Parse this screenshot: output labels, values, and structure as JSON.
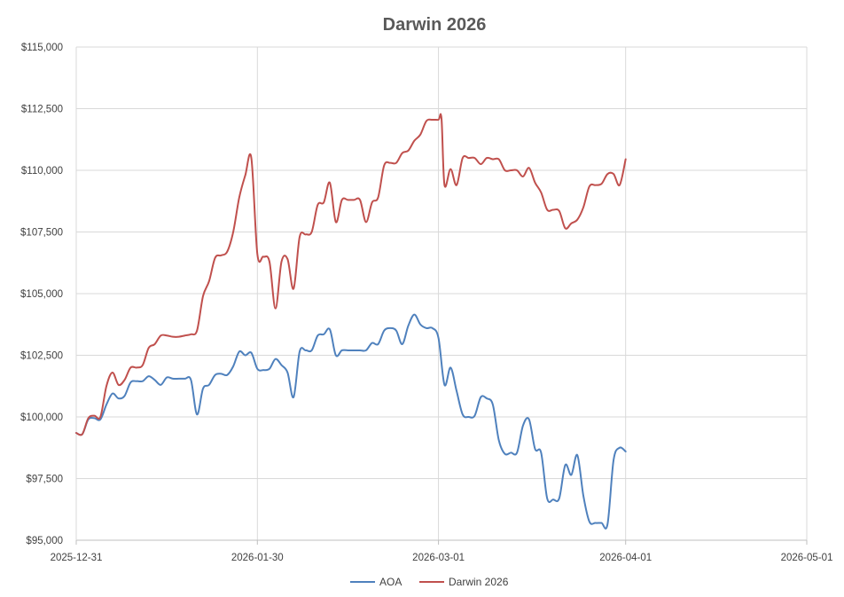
{
  "chart_data": {
    "type": "line",
    "title": "Darwin 2026",
    "xlabel": "",
    "ylabel": "",
    "x_ticks": [
      "2025-12-31",
      "2026-01-30",
      "2026-03-01",
      "2026-04-01",
      "2026-05-01"
    ],
    "y_ticks": [
      "$95,000",
      "$97,500",
      "$100,000",
      "$102,500",
      "$105,000",
      "$107,500",
      "$110,000",
      "$112,500",
      "$115,000"
    ],
    "xlim": [
      "2025-12-31",
      "2026-05-01"
    ],
    "ylim": [
      95000,
      115000
    ],
    "grid": true,
    "legend_position": "bottom",
    "series": [
      {
        "name": "AOA",
        "color": "#4f81bd",
        "points": [
          [
            "2025-12-31",
            99350
          ],
          [
            "2026-01-01",
            99300
          ],
          [
            "2026-01-02",
            99900
          ],
          [
            "2026-01-03",
            99950
          ],
          [
            "2026-01-04",
            99900
          ],
          [
            "2026-01-05",
            100500
          ],
          [
            "2026-01-06",
            100950
          ],
          [
            "2026-01-07",
            100750
          ],
          [
            "2026-01-08",
            100850
          ],
          [
            "2026-01-09",
            101400
          ],
          [
            "2026-01-10",
            101450
          ],
          [
            "2026-01-11",
            101450
          ],
          [
            "2026-01-12",
            101650
          ],
          [
            "2026-01-13",
            101500
          ],
          [
            "2026-01-14",
            101300
          ],
          [
            "2026-01-15",
            101600
          ],
          [
            "2026-01-16",
            101550
          ],
          [
            "2026-01-17",
            101550
          ],
          [
            "2026-01-18",
            101550
          ],
          [
            "2026-01-19",
            101500
          ],
          [
            "2026-01-20",
            100100
          ],
          [
            "2026-01-21",
            101150
          ],
          [
            "2026-01-22",
            101300
          ],
          [
            "2026-01-23",
            101700
          ],
          [
            "2026-01-24",
            101750
          ],
          [
            "2026-01-25",
            101700
          ],
          [
            "2026-01-26",
            102050
          ],
          [
            "2026-01-27",
            102650
          ],
          [
            "2026-01-28",
            102500
          ],
          [
            "2026-01-29",
            102600
          ],
          [
            "2026-01-30",
            101950
          ],
          [
            "2026-01-31",
            101900
          ],
          [
            "2026-02-01",
            101950
          ],
          [
            "2026-02-02",
            102350
          ],
          [
            "2026-02-03",
            102100
          ],
          [
            "2026-02-04",
            101800
          ],
          [
            "2026-02-05",
            100800
          ],
          [
            "2026-02-06",
            102650
          ],
          [
            "2026-02-07",
            102700
          ],
          [
            "2026-02-08",
            102700
          ],
          [
            "2026-02-09",
            103300
          ],
          [
            "2026-02-10",
            103350
          ],
          [
            "2026-02-11",
            103550
          ],
          [
            "2026-02-12",
            102500
          ],
          [
            "2026-02-13",
            102700
          ],
          [
            "2026-02-14",
            102700
          ],
          [
            "2026-02-15",
            102700
          ],
          [
            "2026-02-16",
            102700
          ],
          [
            "2026-02-17",
            102700
          ],
          [
            "2026-02-18",
            103000
          ],
          [
            "2026-02-19",
            102950
          ],
          [
            "2026-02-20",
            103500
          ],
          [
            "2026-02-21",
            103600
          ],
          [
            "2026-02-22",
            103500
          ],
          [
            "2026-02-23",
            102950
          ],
          [
            "2026-02-24",
            103700
          ],
          [
            "2026-02-25",
            104150
          ],
          [
            "2026-02-26",
            103750
          ],
          [
            "2026-02-27",
            103600
          ],
          [
            "2026-02-28",
            103600
          ],
          [
            "2026-03-01",
            103200
          ],
          [
            "2026-03-02",
            101300
          ],
          [
            "2026-03-03",
            102000
          ],
          [
            "2026-03-04",
            101050
          ],
          [
            "2026-03-05",
            100100
          ],
          [
            "2026-03-06",
            100000
          ],
          [
            "2026-03-07",
            100050
          ],
          [
            "2026-03-08",
            100800
          ],
          [
            "2026-03-09",
            100750
          ],
          [
            "2026-03-10",
            100500
          ],
          [
            "2026-03-11",
            99050
          ],
          [
            "2026-03-12",
            98500
          ],
          [
            "2026-03-13",
            98550
          ],
          [
            "2026-03-14",
            98550
          ],
          [
            "2026-03-15",
            99650
          ],
          [
            "2026-03-16",
            99900
          ],
          [
            "2026-03-17",
            98700
          ],
          [
            "2026-03-18",
            98550
          ],
          [
            "2026-03-19",
            96700
          ],
          [
            "2026-03-20",
            96650
          ],
          [
            "2026-03-21",
            96700
          ],
          [
            "2026-03-22",
            98050
          ],
          [
            "2026-03-23",
            97650
          ],
          [
            "2026-03-24",
            98450
          ],
          [
            "2026-03-25",
            96800
          ],
          [
            "2026-03-26",
            95750
          ],
          [
            "2026-03-27",
            95700
          ],
          [
            "2026-03-28",
            95700
          ],
          [
            "2026-03-29",
            95650
          ],
          [
            "2026-03-30",
            98250
          ],
          [
            "2026-03-31",
            98750
          ],
          [
            "2026-04-01",
            98600
          ]
        ]
      },
      {
        "name": "Darwin 2026",
        "color": "#c0504d",
        "points": [
          [
            "2025-12-31",
            99350
          ],
          [
            "2026-01-01",
            99300
          ],
          [
            "2026-01-02",
            99950
          ],
          [
            "2026-01-03",
            100050
          ],
          [
            "2026-01-04",
            100000
          ],
          [
            "2026-01-05",
            101250
          ],
          [
            "2026-01-06",
            101800
          ],
          [
            "2026-01-07",
            101300
          ],
          [
            "2026-01-08",
            101500
          ],
          [
            "2026-01-09",
            102000
          ],
          [
            "2026-01-10",
            102000
          ],
          [
            "2026-01-11",
            102100
          ],
          [
            "2026-01-12",
            102800
          ],
          [
            "2026-01-13",
            102950
          ],
          [
            "2026-01-14",
            103300
          ],
          [
            "2026-01-15",
            103300
          ],
          [
            "2026-01-16",
            103250
          ],
          [
            "2026-01-17",
            103250
          ],
          [
            "2026-01-18",
            103300
          ],
          [
            "2026-01-19",
            103350
          ],
          [
            "2026-01-20",
            103500
          ],
          [
            "2026-01-21",
            104900
          ],
          [
            "2026-01-22",
            105500
          ],
          [
            "2026-01-23",
            106450
          ],
          [
            "2026-01-24",
            106550
          ],
          [
            "2026-01-25",
            106700
          ],
          [
            "2026-01-26",
            107500
          ],
          [
            "2026-01-27",
            108900
          ],
          [
            "2026-01-28",
            109800
          ],
          [
            "2026-01-29",
            110500
          ],
          [
            "2026-01-30",
            106600
          ],
          [
            "2026-01-31",
            106500
          ],
          [
            "2026-02-01",
            106300
          ],
          [
            "2026-02-02",
            104400
          ],
          [
            "2026-02-03",
            106300
          ],
          [
            "2026-02-04",
            106400
          ],
          [
            "2026-02-05",
            105200
          ],
          [
            "2026-02-06",
            107300
          ],
          [
            "2026-02-07",
            107400
          ],
          [
            "2026-02-08",
            107500
          ],
          [
            "2026-02-09",
            108600
          ],
          [
            "2026-02-10",
            108700
          ],
          [
            "2026-02-11",
            109500
          ],
          [
            "2026-02-12",
            107900
          ],
          [
            "2026-02-13",
            108800
          ],
          [
            "2026-02-14",
            108800
          ],
          [
            "2026-02-15",
            108800
          ],
          [
            "2026-02-16",
            108800
          ],
          [
            "2026-02-17",
            107900
          ],
          [
            "2026-02-18",
            108700
          ],
          [
            "2026-02-19",
            108900
          ],
          [
            "2026-02-20",
            110200
          ],
          [
            "2026-02-21",
            110300
          ],
          [
            "2026-02-22",
            110300
          ],
          [
            "2026-02-23",
            110700
          ],
          [
            "2026-02-24",
            110800
          ],
          [
            "2026-02-25",
            111200
          ],
          [
            "2026-02-26",
            111450
          ],
          [
            "2026-02-27",
            112000
          ],
          [
            "2026-02-28",
            112050
          ],
          [
            "2026-02-29",
            112050
          ],
          [
            "2026-03-01",
            112100
          ],
          [
            "2026-03-02",
            109400
          ],
          [
            "2026-03-03",
            110050
          ],
          [
            "2026-03-04",
            109400
          ],
          [
            "2026-03-05",
            110500
          ],
          [
            "2026-03-06",
            110500
          ],
          [
            "2026-03-07",
            110500
          ],
          [
            "2026-03-08",
            110250
          ],
          [
            "2026-03-09",
            110500
          ],
          [
            "2026-03-10",
            110450
          ],
          [
            "2026-03-11",
            110450
          ],
          [
            "2026-03-12",
            110000
          ],
          [
            "2026-03-13",
            110000
          ],
          [
            "2026-03-14",
            110000
          ],
          [
            "2026-03-15",
            109750
          ],
          [
            "2026-03-16",
            110100
          ],
          [
            "2026-03-17",
            109500
          ],
          [
            "2026-03-18",
            109100
          ],
          [
            "2026-03-19",
            108400
          ],
          [
            "2026-03-20",
            108400
          ],
          [
            "2026-03-21",
            108350
          ],
          [
            "2026-03-22",
            107650
          ],
          [
            "2026-03-23",
            107850
          ],
          [
            "2026-03-24",
            108000
          ],
          [
            "2026-03-25",
            108500
          ],
          [
            "2026-03-26",
            109350
          ],
          [
            "2026-03-27",
            109400
          ],
          [
            "2026-03-28",
            109450
          ],
          [
            "2026-03-29",
            109850
          ],
          [
            "2026-03-30",
            109850
          ],
          [
            "2026-03-31",
            109400
          ],
          [
            "2026-04-01",
            110450
          ]
        ]
      }
    ]
  }
}
